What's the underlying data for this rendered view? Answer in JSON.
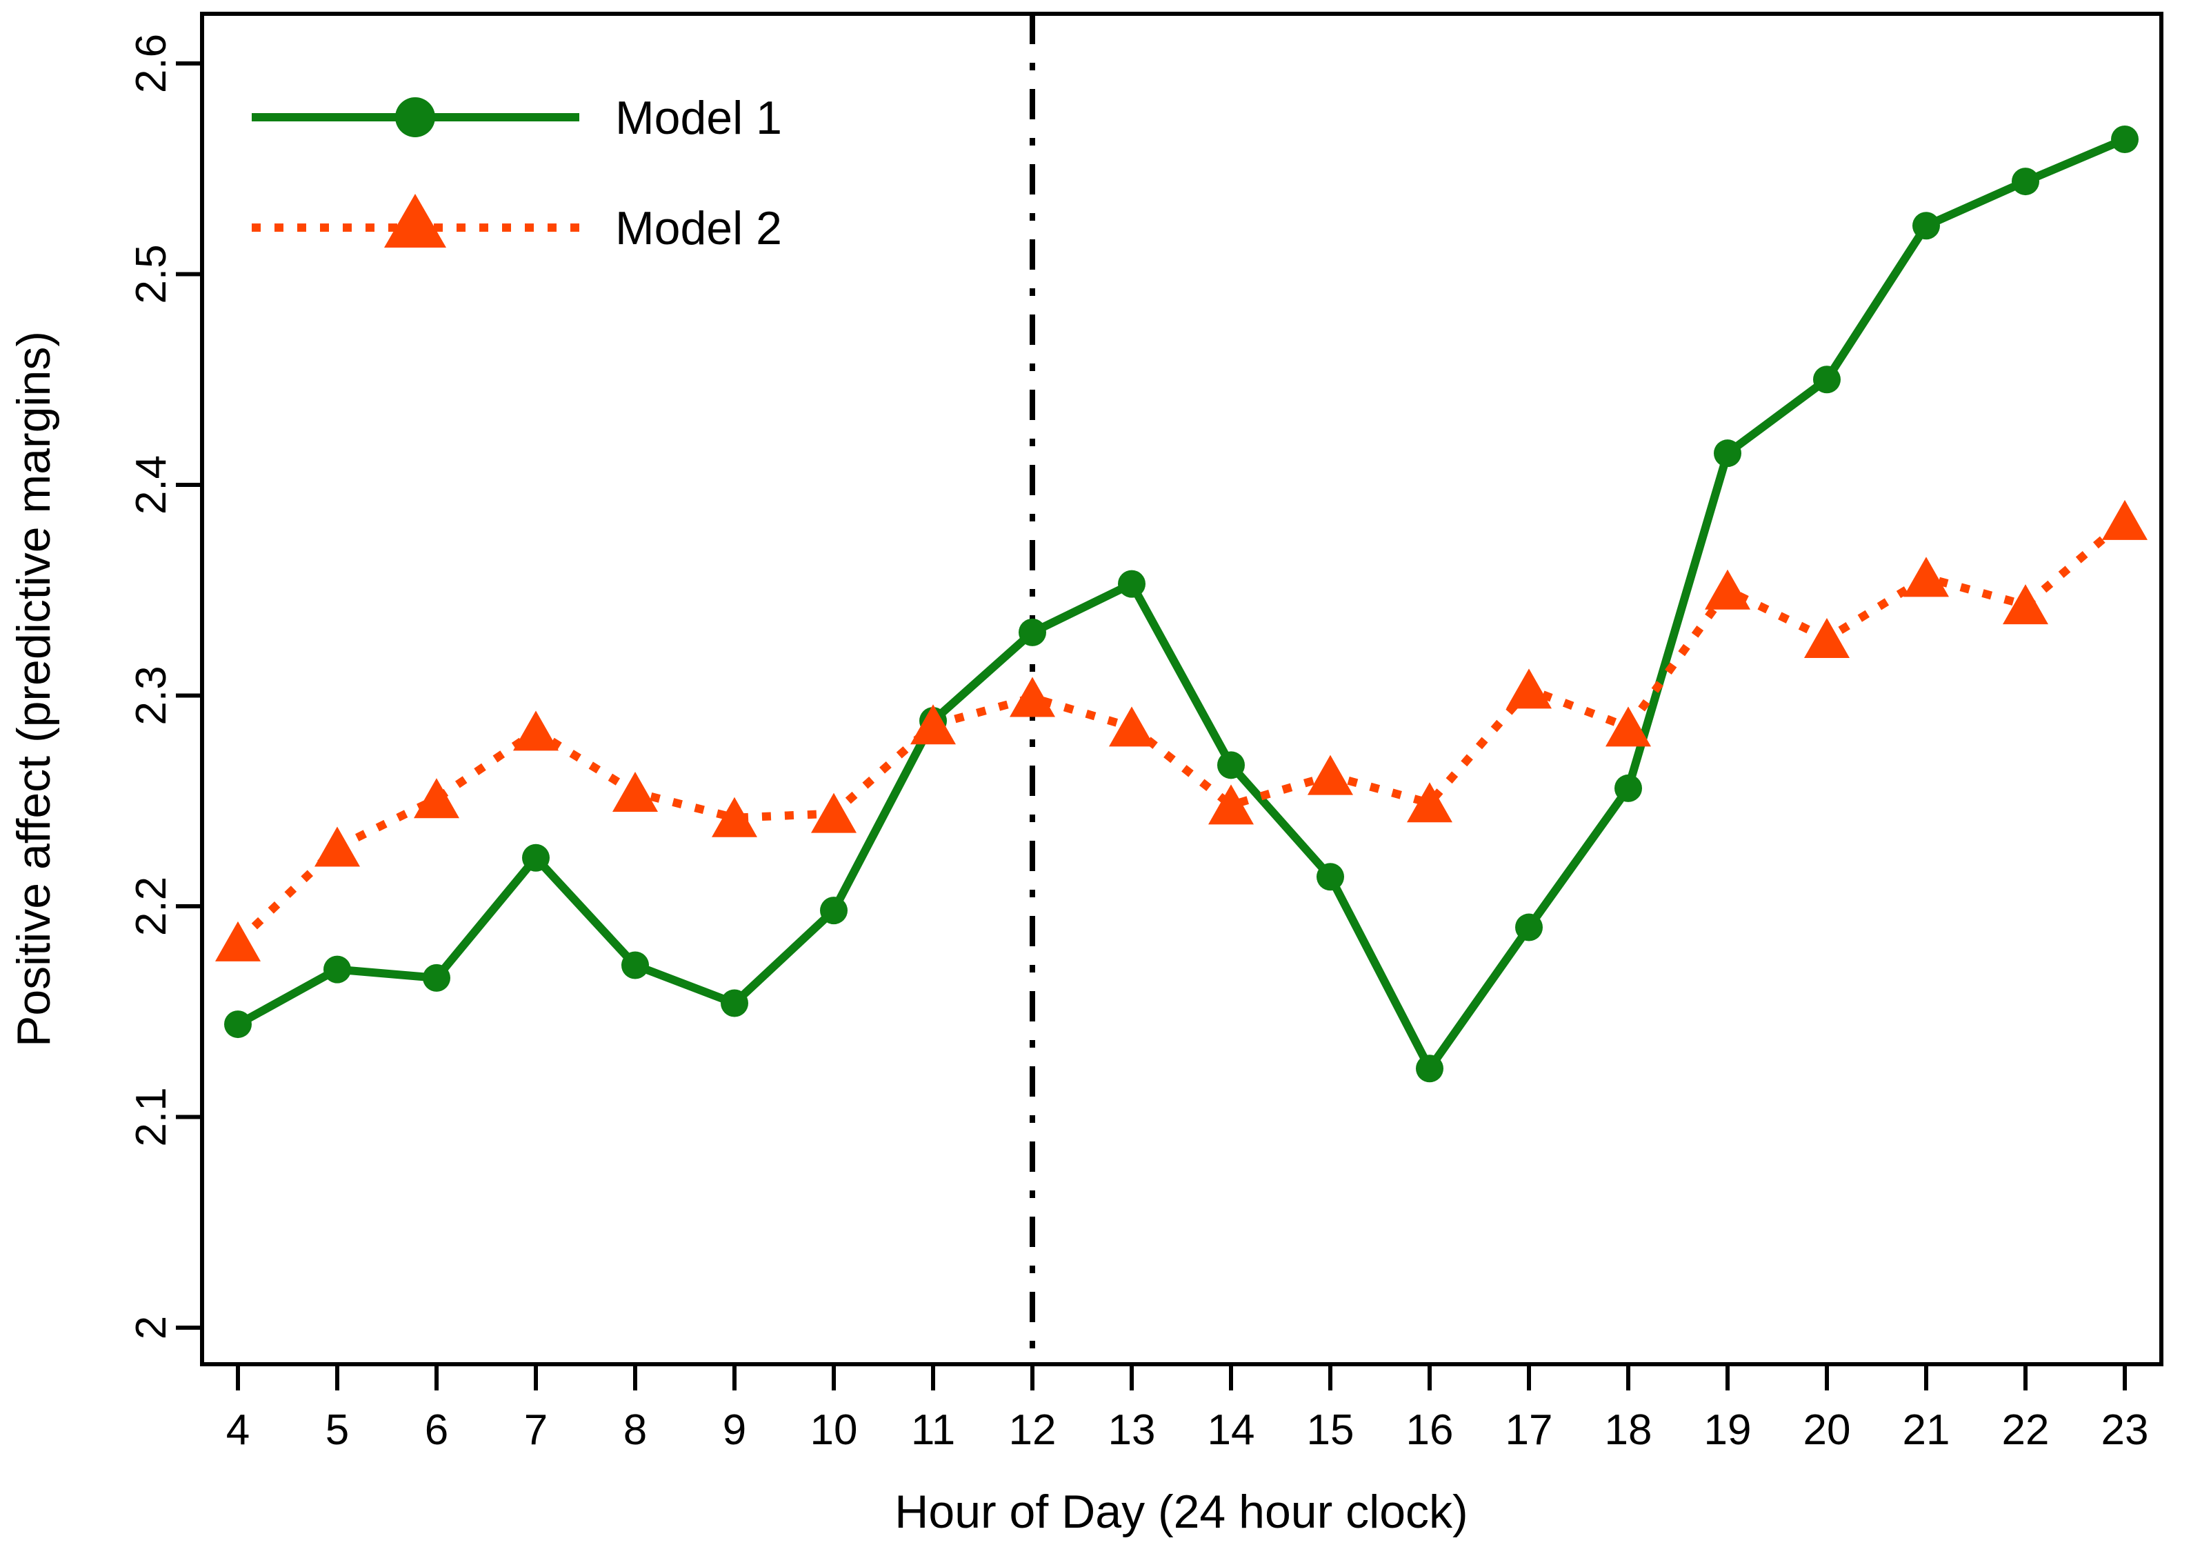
{
  "chart_data": {
    "type": "line",
    "x": [
      4,
      5,
      6,
      7,
      8,
      9,
      10,
      11,
      12,
      13,
      14,
      15,
      16,
      17,
      18,
      19,
      20,
      21,
      22,
      23
    ],
    "series": [
      {
        "name": "Model 1",
        "marker": "circle",
        "line_style": "solid",
        "color": "#0d7f12",
        "values": [
          2.144,
          2.17,
          2.166,
          2.223,
          2.172,
          2.154,
          2.198,
          2.288,
          2.33,
          2.353,
          2.267,
          2.214,
          2.123,
          2.19,
          2.256,
          2.415,
          2.45,
          2.523,
          2.544,
          2.564
        ]
      },
      {
        "name": "Model 2",
        "marker": "triangle",
        "line_style": "dotted",
        "color": "#ff4500",
        "values": [
          2.183,
          2.228,
          2.251,
          2.283,
          2.254,
          2.242,
          2.244,
          2.286,
          2.299,
          2.285,
          2.248,
          2.262,
          2.249,
          2.303,
          2.285,
          2.35,
          2.327,
          2.356,
          2.343,
          2.383
        ]
      }
    ],
    "xlabel": "Hour of Day (24 hour clock)",
    "ylabel": "Positive affect (predictive margins)",
    "ylim": [
      2,
      2.6
    ],
    "yticks": [
      2,
      2.1,
      2.2,
      2.3,
      2.4,
      2.5,
      2.6
    ],
    "ytick_labels": [
      "2",
      "2.1",
      "2.2",
      "2.3",
      "2.4",
      "2.5",
      "2.6"
    ],
    "xtick_labels": [
      "4",
      "5",
      "6",
      "7",
      "8",
      "9",
      "10",
      "11",
      "12",
      "13",
      "14",
      "15",
      "16",
      "17",
      "18",
      "19",
      "20",
      "21",
      "22",
      "23"
    ],
    "ref_line": {
      "x": 12,
      "style": "dash-dot",
      "color": "#000000"
    },
    "grid": false,
    "legend_position": "top-left",
    "axis_color": "#000000",
    "background_color": "#ffffff"
  },
  "legend": {
    "items": [
      {
        "label": "Model 1"
      },
      {
        "label": "Model 2"
      }
    ]
  }
}
